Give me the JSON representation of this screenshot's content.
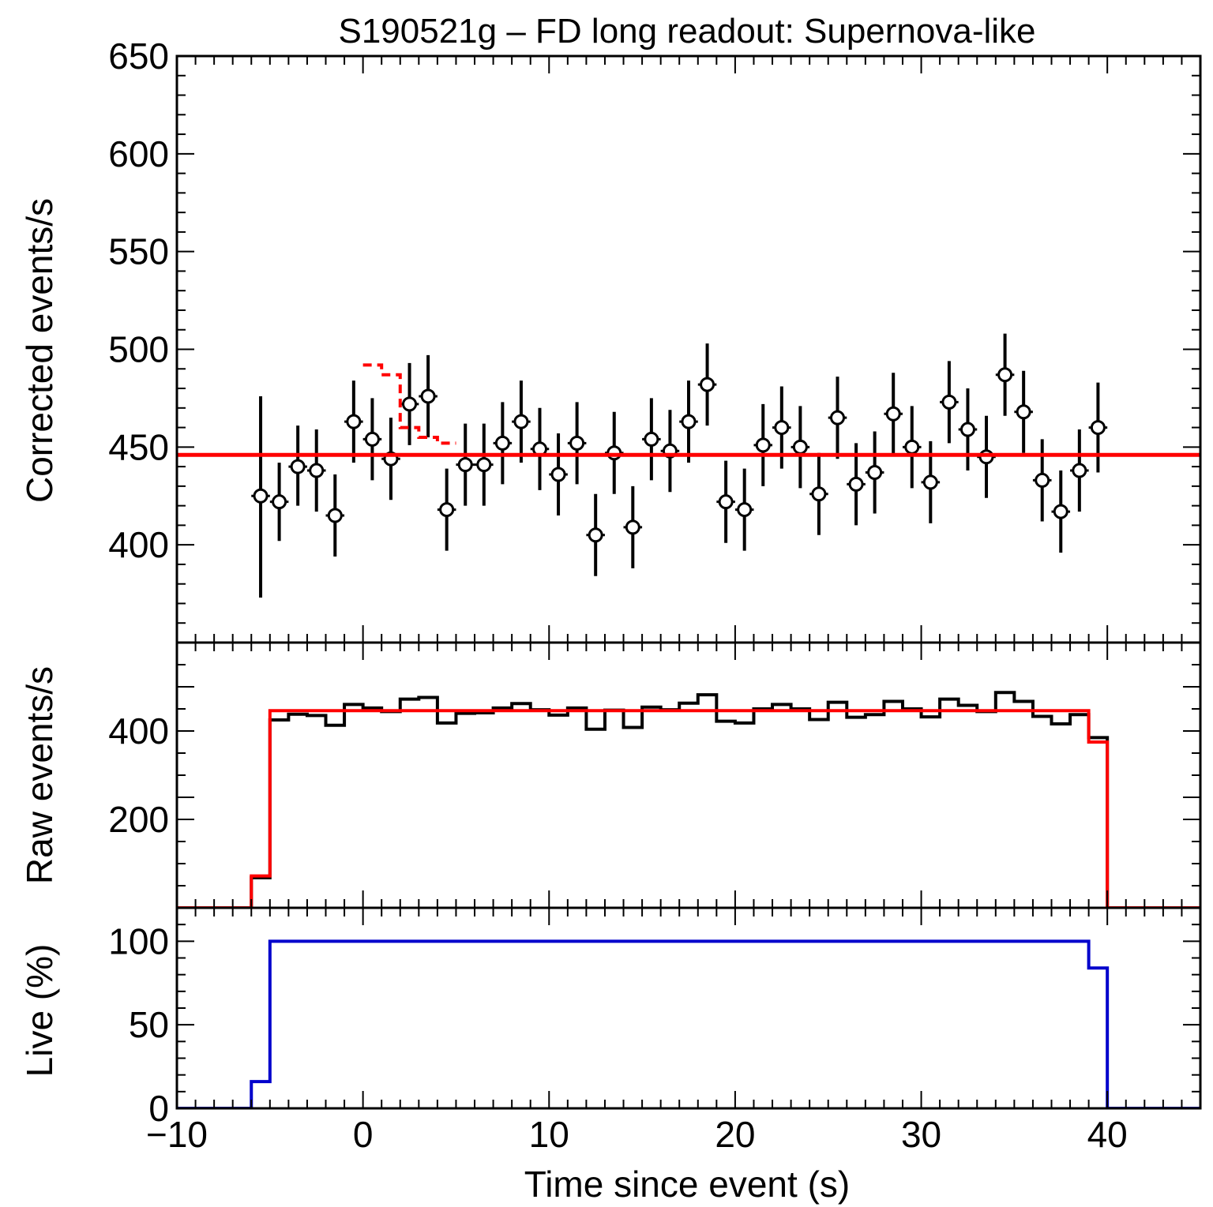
{
  "chart_data": {
    "type": "multi-panel",
    "title": "S190521g – FD long readout: Supernova-like",
    "xlabel": "Time since event (s)",
    "xlim": [
      -10,
      45
    ],
    "xticks": [
      -10,
      0,
      10,
      20,
      30,
      40
    ],
    "xtick_labels": [
      "−10",
      "0",
      "10",
      "20",
      "30",
      "40"
    ],
    "panels": [
      {
        "id": "corrected",
        "type": "scatter",
        "ylabel": "Corrected events/s",
        "ylim": [
          350,
          650
        ],
        "yticks": [
          400,
          450,
          500,
          550,
          600,
          650
        ],
        "minor_step": 10,
        "series": [
          {
            "kind": "points-with-errors",
            "color": "#000000",
            "x": [
              -5.5,
              -4.5,
              -3.5,
              -2.5,
              -1.5,
              -0.5,
              0.5,
              1.5,
              2.5,
              3.5,
              4.5,
              5.5,
              6.5,
              7.5,
              8.5,
              9.5,
              10.5,
              11.5,
              12.5,
              13.5,
              14.5,
              15.5,
              16.5,
              17.5,
              18.5,
              19.5,
              20.5,
              21.5,
              22.5,
              23.5,
              24.5,
              25.5,
              26.5,
              27.5,
              28.5,
              29.5,
              30.5,
              31.5,
              32.5,
              33.5,
              34.5,
              35.5,
              36.5,
              37.5,
              38.5,
              39.5
            ],
            "y": [
              425,
              422,
              440,
              438,
              415,
              463,
              454,
              444,
              472,
              476,
              418,
              441,
              441,
              452,
              463,
              449,
              436,
              452,
              405,
              447,
              409,
              454,
              448,
              463,
              482,
              422,
              418,
              451,
              460,
              450,
              426,
              465,
              431,
              437,
              467,
              450,
              432,
              473,
              459,
              445,
              487,
              468,
              433,
              417,
              438,
              460
            ],
            "yerr_low": [
              52,
              20,
              20,
              21,
              21,
              21,
              21,
              21,
              21,
              21,
              21,
              21,
              21,
              21,
              21,
              21,
              21,
              21,
              21,
              21,
              21,
              21,
              21,
              21,
              21,
              21,
              21,
              21,
              21,
              21,
              21,
              21,
              21,
              21,
              21,
              21,
              21,
              21,
              21,
              21,
              21,
              21,
              21,
              21,
              21,
              23
            ],
            "yerr_high": [
              51,
              20,
              21,
              21,
              21,
              21,
              21,
              21,
              21,
              21,
              21,
              21,
              21,
              21,
              21,
              21,
              21,
              21,
              21,
              21,
              21,
              21,
              21,
              21,
              21,
              21,
              21,
              21,
              21,
              21,
              21,
              21,
              21,
              21,
              21,
              21,
              21,
              21,
              21,
              21,
              21,
              21,
              21,
              21,
              21,
              23
            ]
          },
          {
            "kind": "hline",
            "color": "#ff0000",
            "y": 446
          },
          {
            "kind": "step-dashed",
            "color": "#ff0000",
            "edges": [
              0,
              1,
              2,
              3,
              4,
              5
            ],
            "values": [
              492,
              487,
              460,
              455,
              452
            ]
          }
        ]
      },
      {
        "id": "raw",
        "type": "histogram",
        "ylabel": "Raw events/s",
        "ylim": [
          0,
          600
        ],
        "yticks": [
          200,
          400
        ],
        "minor_step": 50,
        "series": [
          {
            "kind": "step",
            "color": "#000000",
            "edges": [
              -10,
              -9,
              -8,
              -7,
              -6,
              -5,
              -4,
              -3,
              -2,
              -1,
              0,
              1,
              2,
              3,
              4,
              5,
              6,
              7,
              8,
              9,
              10,
              11,
              12,
              13,
              14,
              15,
              16,
              17,
              18,
              19,
              20,
              21,
              22,
              23,
              24,
              25,
              26,
              27,
              28,
              29,
              30,
              31,
              32,
              33,
              34,
              35,
              36,
              37,
              38,
              39,
              40,
              41,
              42,
              43,
              44,
              45
            ],
            "values": [
              0,
              0,
              0,
              0,
              68,
              425,
              438,
              435,
              413,
              460,
              452,
              444,
              472,
              476,
              418,
              440,
              441,
              452,
              462,
              448,
              436,
              452,
              404,
              447,
              408,
              454,
              448,
              463,
              482,
              422,
              418,
              450,
              460,
              450,
              426,
              465,
              431,
              437,
              467,
              450,
              432,
              472,
              458,
              444,
              487,
              467,
              433,
              416,
              437,
              385,
              0,
              0,
              0,
              0,
              0
            ]
          },
          {
            "kind": "step",
            "color": "#ff0000",
            "edges": [
              -10,
              -9,
              -8,
              -7,
              -6,
              -5,
              -4,
              -3,
              -2,
              -1,
              0,
              1,
              2,
              3,
              4,
              5,
              6,
              7,
              8,
              9,
              10,
              11,
              12,
              13,
              14,
              15,
              16,
              17,
              18,
              19,
              20,
              21,
              22,
              23,
              24,
              25,
              26,
              27,
              28,
              29,
              30,
              31,
              32,
              33,
              34,
              35,
              36,
              37,
              38,
              39,
              40,
              41,
              42,
              43,
              44,
              45
            ],
            "values": [
              0,
              0,
              0,
              0,
              72,
              446,
              446,
              446,
              446,
              446,
              446,
              446,
              446,
              446,
              446,
              446,
              446,
              446,
              446,
              446,
              446,
              446,
              446,
              446,
              446,
              446,
              446,
              446,
              446,
              446,
              446,
              446,
              446,
              446,
              446,
              446,
              446,
              446,
              446,
              446,
              446,
              446,
              446,
              446,
              446,
              446,
              446,
              446,
              446,
              375,
              0,
              0,
              0,
              0,
              0
            ]
          }
        ]
      },
      {
        "id": "live",
        "type": "histogram",
        "ylabel": "Live (%)",
        "ylim": [
          0,
          120
        ],
        "yticks": [
          0,
          50,
          100
        ],
        "minor_step": 10,
        "series": [
          {
            "kind": "step",
            "color": "#0000cc",
            "edges": [
              -10,
              -9,
              -8,
              -7,
              -6,
              -5,
              -4,
              -3,
              -2,
              -1,
              0,
              1,
              2,
              3,
              4,
              5,
              6,
              7,
              8,
              9,
              10,
              11,
              12,
              13,
              14,
              15,
              16,
              17,
              18,
              19,
              20,
              21,
              22,
              23,
              24,
              25,
              26,
              27,
              28,
              29,
              30,
              31,
              32,
              33,
              34,
              35,
              36,
              37,
              38,
              39,
              40,
              41,
              42,
              43,
              44,
              45
            ],
            "values": [
              0,
              0,
              0,
              0,
              16,
              100,
              100,
              100,
              100,
              100,
              100,
              100,
              100,
              100,
              100,
              100,
              100,
              100,
              100,
              100,
              100,
              100,
              100,
              100,
              100,
              100,
              100,
              100,
              100,
              100,
              100,
              100,
              100,
              100,
              100,
              100,
              100,
              100,
              100,
              100,
              100,
              100,
              100,
              100,
              100,
              100,
              100,
              100,
              100,
              84,
              0,
              0,
              0,
              0,
              0
            ]
          }
        ]
      }
    ]
  }
}
